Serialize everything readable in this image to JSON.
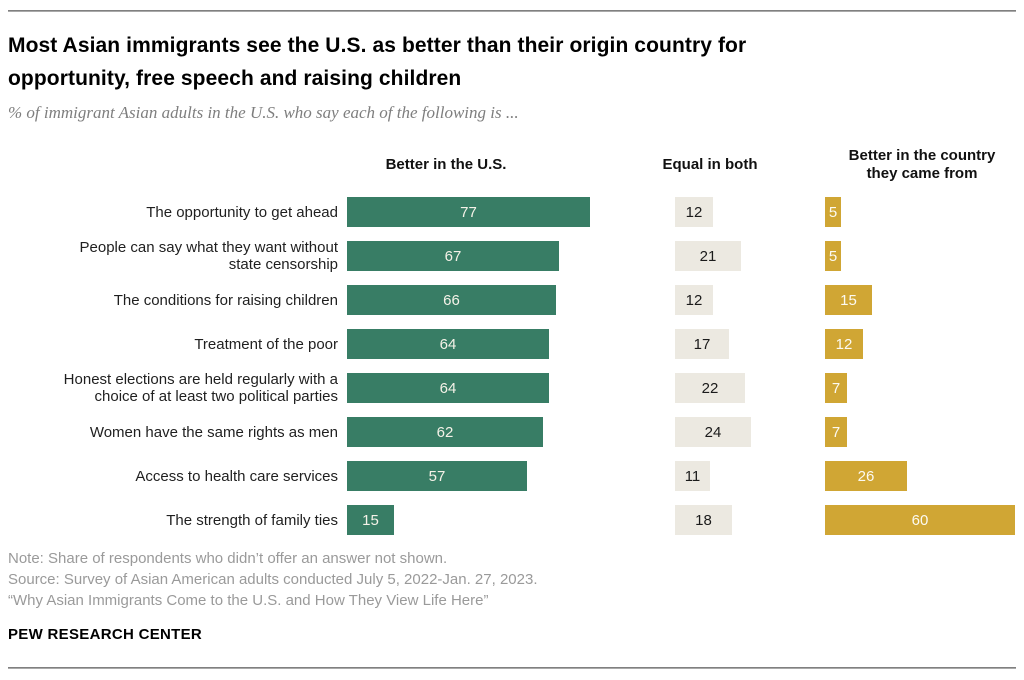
{
  "page": {
    "title": "Most Asian immigrants see the U.S. as better than their origin country for\nopportunity, free speech and raising children",
    "subtitle": "% of immigrant Asian adults in the U.S. who say each of the following is ...",
    "note": "Note: Share of respondents who didn’t offer an answer not shown.",
    "source": "Source: Survey of Asian American adults conducted July 5, 2022-Jan. 27, 2023.",
    "report": "“Why Asian Immigrants Come to the U.S. and How They View Life Here”",
    "brand": "PEW RESEARCH CENTER"
  },
  "chart_data": {
    "type": "bar",
    "orientation": "horizontal",
    "value_unit": "percent",
    "value_labels": "inside",
    "axis_range": [
      0,
      100
    ],
    "grid": false,
    "legend_position": "column-headers-top",
    "column_headers": [
      "Better in the U.S.",
      "Equal in both",
      "Better in the country\nthey came from"
    ],
    "categories": [
      "The opportunity to get ahead",
      "People can say what they want without\nstate censorship",
      "The conditions for raising children",
      "Treatment of the poor",
      "Honest elections are held regularly with a\nchoice of at least two political parties",
      "Women have the same rights as men",
      "Access to health care services",
      "The strength of family ties"
    ],
    "series": [
      {
        "name": "Better in the U.S.",
        "color": "#387D65",
        "values": [
          77,
          67,
          66,
          64,
          64,
          62,
          57,
          15
        ]
      },
      {
        "name": "Equal in both",
        "color": "#ECE9E1",
        "values": [
          12,
          21,
          12,
          17,
          22,
          24,
          11,
          18
        ]
      },
      {
        "name": "Better in the country they came from",
        "color": "#D0A634",
        "values": [
          5,
          5,
          15,
          12,
          7,
          7,
          26,
          60
        ]
      }
    ]
  }
}
